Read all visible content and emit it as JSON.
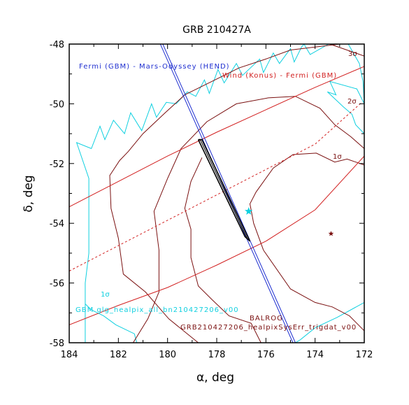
{
  "chart_data": {
    "type": "line",
    "title": "GRB 210427A",
    "xlabel": "α, deg",
    "ylabel": "δ, deg",
    "xlim": [
      184,
      172
    ],
    "ylim": [
      -58,
      -48
    ],
    "x_reversed": true,
    "grid": false,
    "x_ticks": [
      184,
      182,
      180,
      178,
      176,
      174,
      172
    ],
    "y_ticks": [
      -48,
      -50,
      -52,
      -54,
      -56,
      -58
    ],
    "colors": {
      "ipn_fermi_odyssey": "#1f2fd0",
      "ipn_wind_fermi": "#d22020",
      "gbm_ground": "#10d0e0",
      "balrog": "#7a1010",
      "intersection_box": "#000000",
      "cyan_star": "#10d0e0",
      "dark_star": "#7a1010"
    },
    "annotations": {
      "fermi_odyssey": "Fermi (GBM) - Mars-Odyssey (HEND)",
      "wind_fermi": "Wind (Konus) - Fermi (GBM)",
      "sigma3": "3σ",
      "sigma2": "2σ",
      "sigma1_red": "1σ",
      "sigma1_cyan": "1σ",
      "gbm_label": "GBM glg_healpix_all_bn210427206_v00",
      "balrog_label": "BALROG",
      "balrog_file": "GRB210427206_healpixSysErr_trigdat_v00"
    },
    "series": [
      {
        "name": "Fermi (GBM) - Mars-Odyssey (HEND)",
        "style": "double-line",
        "lines": [
          [
            [
              180.35,
              -47.9
            ],
            [
              174.9,
              -58.0
            ]
          ],
          [
            [
              180.25,
              -47.9
            ],
            [
              174.8,
              -58.0
            ]
          ]
        ]
      },
      {
        "name": "Wind (Konus) - Fermi (GBM)",
        "upper": [
          [
            184,
            -53.45
          ],
          [
            182,
            -52.6
          ],
          [
            180,
            -51.75
          ],
          [
            178,
            -50.95
          ],
          [
            176,
            -50.2
          ],
          [
            174,
            -49.45
          ],
          [
            172,
            -48.75
          ]
        ],
        "center": [
          [
            184,
            -55.6
          ],
          [
            182,
            -54.75
          ],
          [
            180,
            -53.9
          ],
          [
            178,
            -53.05
          ],
          [
            176,
            -52.2
          ],
          [
            174,
            -51.35
          ],
          [
            172.1,
            -49.95
          ]
        ],
        "lower": [
          [
            184,
            -57.4
          ],
          [
            182,
            -56.75
          ],
          [
            180,
            -56.15
          ],
          [
            178,
            -55.4
          ],
          [
            176,
            -54.6
          ],
          [
            174,
            -53.55
          ],
          [
            172,
            -51.75
          ]
        ]
      },
      {
        "name": "GBM glg_healpix_all_bn210427206_v00",
        "contour_1sigma": [
          [
            183.35,
            -58.0
          ],
          [
            183.35,
            -56.0
          ],
          [
            183.2,
            -55.0
          ],
          [
            183.2,
            -52.5
          ],
          [
            183.7,
            -51.3
          ],
          [
            183.1,
            -51.5
          ],
          [
            182.75,
            -50.75
          ],
          [
            182.55,
            -51.2
          ],
          [
            182.2,
            -50.55
          ],
          [
            181.75,
            -51.0
          ],
          [
            181.5,
            -50.3
          ],
          [
            181.05,
            -50.9
          ],
          [
            180.65,
            -50.0
          ],
          [
            180.45,
            -50.45
          ],
          [
            180.05,
            -49.95
          ],
          [
            179.65,
            -50.0
          ],
          [
            179.2,
            -49.6
          ],
          [
            178.85,
            -49.75
          ],
          [
            178.5,
            -49.2
          ],
          [
            178.3,
            -49.65
          ],
          [
            177.95,
            -48.85
          ],
          [
            177.7,
            -49.3
          ],
          [
            177.2,
            -48.65
          ],
          [
            176.95,
            -49.05
          ],
          [
            176.25,
            -48.5
          ],
          [
            176.1,
            -48.95
          ],
          [
            175.7,
            -48.3
          ],
          [
            175.45,
            -48.65
          ],
          [
            175.0,
            -48.15
          ],
          [
            174.85,
            -48.6
          ],
          [
            174.55,
            -48.1
          ],
          [
            174.45,
            -48.0
          ],
          [
            174.2,
            -48.35
          ],
          [
            173.45,
            -48.0
          ],
          [
            172.65,
            -48.0
          ],
          [
            172.2,
            -48.65
          ],
          [
            172.05,
            -49.25
          ],
          [
            172.0,
            -50.0
          ],
          [
            172.3,
            -49.5
          ],
          [
            173.4,
            -49.25
          ],
          [
            173.15,
            -49.7
          ],
          [
            173.5,
            -49.6
          ],
          [
            172.85,
            -50.1
          ],
          [
            172.5,
            -50.35
          ],
          [
            172.35,
            -50.7
          ],
          [
            172.0,
            -51.0
          ]
        ],
        "contour_bottom": [
          [
            181.25,
            -58.0
          ],
          [
            181.35,
            -57.7
          ],
          [
            182.1,
            -57.4
          ],
          [
            182.6,
            -57.1
          ],
          [
            183.1,
            -56.9
          ],
          [
            183.35,
            -56.7
          ]
        ],
        "contour_bottom_right": [
          [
            172,
            -56.65
          ],
          [
            173.1,
            -57.15
          ],
          [
            174.0,
            -57.5
          ],
          [
            174.6,
            -57.9
          ],
          [
            174.8,
            -58.0
          ]
        ]
      },
      {
        "name": "BALROG",
        "contour_3sigma": [
          [
            178.75,
            -58.0
          ],
          [
            179.95,
            -57.2
          ],
          [
            180.9,
            -56.3
          ],
          [
            181.8,
            -55.7
          ],
          [
            182.0,
            -54.5
          ],
          [
            182.3,
            -53.5
          ],
          [
            182.35,
            -52.4
          ],
          [
            181.95,
            -51.9
          ],
          [
            181.6,
            -51.6
          ],
          [
            181.0,
            -51.0
          ],
          [
            180.1,
            -50.3
          ],
          [
            179.3,
            -49.7
          ],
          [
            178.2,
            -49.25
          ],
          [
            177.1,
            -48.8
          ],
          [
            176.0,
            -48.5
          ],
          [
            175.0,
            -48.2
          ],
          [
            174.0,
            -48.1
          ],
          [
            173.0,
            -48.0
          ]
        ],
        "contour_3sigma_right": [
          [
            172.0,
            -48.4
          ],
          [
            173.4,
            -48.0
          ]
        ],
        "contour_2sigma": [
          [
            181.4,
            -58.0
          ],
          [
            180.8,
            -57.2
          ],
          [
            180.35,
            -56.3
          ],
          [
            180.35,
            -54.9
          ],
          [
            180.55,
            -53.6
          ],
          [
            180.0,
            -52.5
          ],
          [
            179.45,
            -51.5
          ],
          [
            178.4,
            -50.6
          ],
          [
            177.2,
            -50.0
          ],
          [
            175.9,
            -49.8
          ],
          [
            174.8,
            -49.75
          ],
          [
            173.8,
            -50.15
          ],
          [
            173.2,
            -50.7
          ],
          [
            172.55,
            -51.1
          ],
          [
            172.0,
            -51.5
          ]
        ],
        "contour_2sigma_bottom": [
          [
            176.2,
            -58.0
          ],
          [
            176.6,
            -57.35
          ],
          [
            177.5,
            -57.1
          ],
          [
            178.2,
            -56.55
          ],
          [
            178.75,
            -56.1
          ],
          [
            179.05,
            -55.15
          ],
          [
            179.05,
            -54.2
          ],
          [
            179.3,
            -53.5
          ],
          [
            179.05,
            -52.6
          ],
          [
            178.6,
            -51.8
          ]
        ],
        "contour_1sigma": [
          [
            176.1,
            -54.9
          ],
          [
            175.0,
            -56.2
          ],
          [
            174.0,
            -56.65
          ],
          [
            173.3,
            -56.8
          ],
          [
            172.6,
            -57.1
          ],
          [
            172.0,
            -57.6
          ]
        ],
        "contour_1sigma_top": [
          [
            176.1,
            -54.9
          ],
          [
            176.5,
            -54.0
          ],
          [
            176.65,
            -53.35
          ],
          [
            176.4,
            -52.95
          ],
          [
            175.7,
            -52.15
          ],
          [
            174.9,
            -51.7
          ],
          [
            173.95,
            -51.65
          ],
          [
            173.2,
            -51.95
          ],
          [
            172.7,
            -51.85
          ],
          [
            172.0,
            -52.05
          ]
        ]
      }
    ],
    "intersection_box": [
      [
        178.75,
        -51.2
      ],
      [
        176.85,
        -54.45
      ],
      [
        176.65,
        -54.6
      ],
      [
        178.6,
        -51.2
      ]
    ],
    "points": [
      {
        "name": "cyan-star",
        "x": 176.7,
        "y": -53.6,
        "color": "#10d0e0"
      },
      {
        "name": "dark-star",
        "x": 173.35,
        "y": -54.35,
        "color": "#7a1010"
      }
    ]
  }
}
